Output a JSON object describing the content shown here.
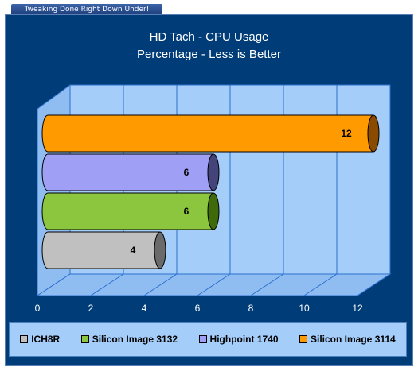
{
  "banner": {
    "text": "Tweaking Done Right Down Under!"
  },
  "chart_data": {
    "type": "bar",
    "orientation": "horizontal",
    "title": "HD Tach - CPU Usage",
    "subtitle": "Percentage - Less is Better",
    "series": [
      {
        "name": "ICH8R",
        "value": 4,
        "color": "#c0c0c0",
        "dark": "#6a6a6a"
      },
      {
        "name": "Silicon Image 3132",
        "value": 6,
        "color": "#8cc63f",
        "dark": "#3f6a0a"
      },
      {
        "name": "Highpoint 1740",
        "value": 6,
        "color": "#9f9ff5",
        "dark": "#44447a"
      },
      {
        "name": "Silicon Image 3114",
        "value": 12,
        "color": "#ff9a00",
        "dark": "#8a4a00"
      }
    ],
    "xlim": [
      0,
      12
    ],
    "ticks": [
      "0",
      "2",
      "4",
      "6",
      "8",
      "10",
      "12"
    ],
    "grid": true,
    "legend_position": "bottom"
  }
}
